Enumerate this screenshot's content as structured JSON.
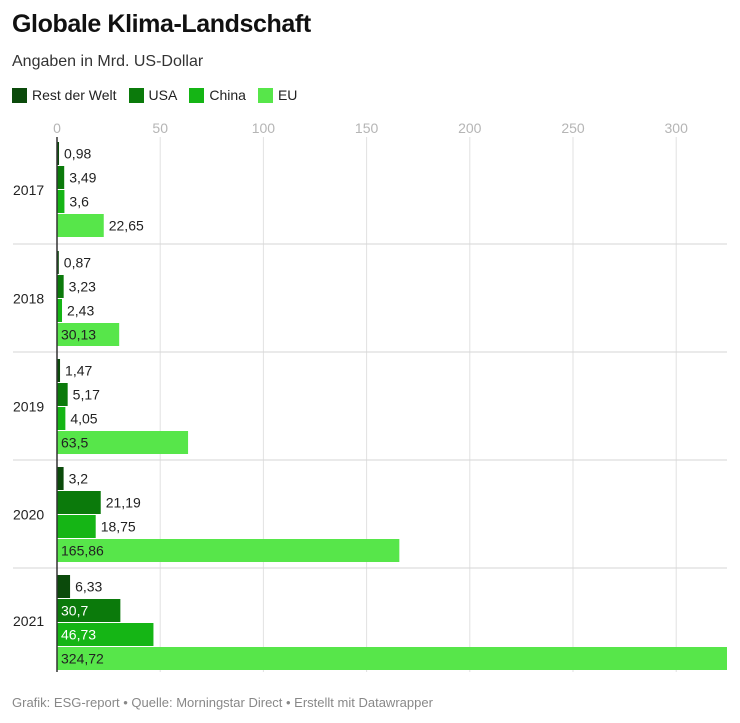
{
  "header": {
    "title": "Globale Klima-Landschaft",
    "subtitle": "Angaben in Mrd. US-Dollar"
  },
  "footer": {
    "text": "Grafik: ESG-report • Quelle: Morningstar Direct • Erstellt mit Datawrapper"
  },
  "chart_data": {
    "type": "bar",
    "orientation": "horizontal",
    "title": "Globale Klima-Landschaft",
    "subtitle": "Angaben in Mrd. US-Dollar",
    "categories": [
      "2017",
      "2018",
      "2019",
      "2020",
      "2021"
    ],
    "series": [
      {
        "name": "Rest der Welt",
        "color": "#0b4a0b",
        "values": [
          0.98,
          0.87,
          1.47,
          3.2,
          6.33
        ],
        "labels": [
          "0,98",
          "0,87",
          "1,47",
          "3,2",
          "6,33"
        ]
      },
      {
        "name": "USA",
        "color": "#0b7a0b",
        "values": [
          3.49,
          3.23,
          5.17,
          21.19,
          30.7
        ],
        "labels": [
          "3,49",
          "3,23",
          "5,17",
          "21,19",
          "30,7"
        ]
      },
      {
        "name": "China",
        "color": "#15b515",
        "values": [
          3.6,
          2.43,
          4.05,
          18.75,
          46.73
        ],
        "labels": [
          "3,6",
          "2,43",
          "4,05",
          "18,75",
          "46,73"
        ]
      },
      {
        "name": "EU",
        "color": "#57e64a",
        "values": [
          22.65,
          30.13,
          63.5,
          165.86,
          324.72
        ],
        "labels": [
          "22,65",
          "30,13",
          "63,5",
          "165,86",
          "324,72"
        ]
      }
    ],
    "x_ticks": [
      0,
      50,
      100,
      150,
      200,
      250,
      300
    ],
    "xlim": [
      0,
      325
    ],
    "grid": true,
    "legend_position": "top-left"
  }
}
